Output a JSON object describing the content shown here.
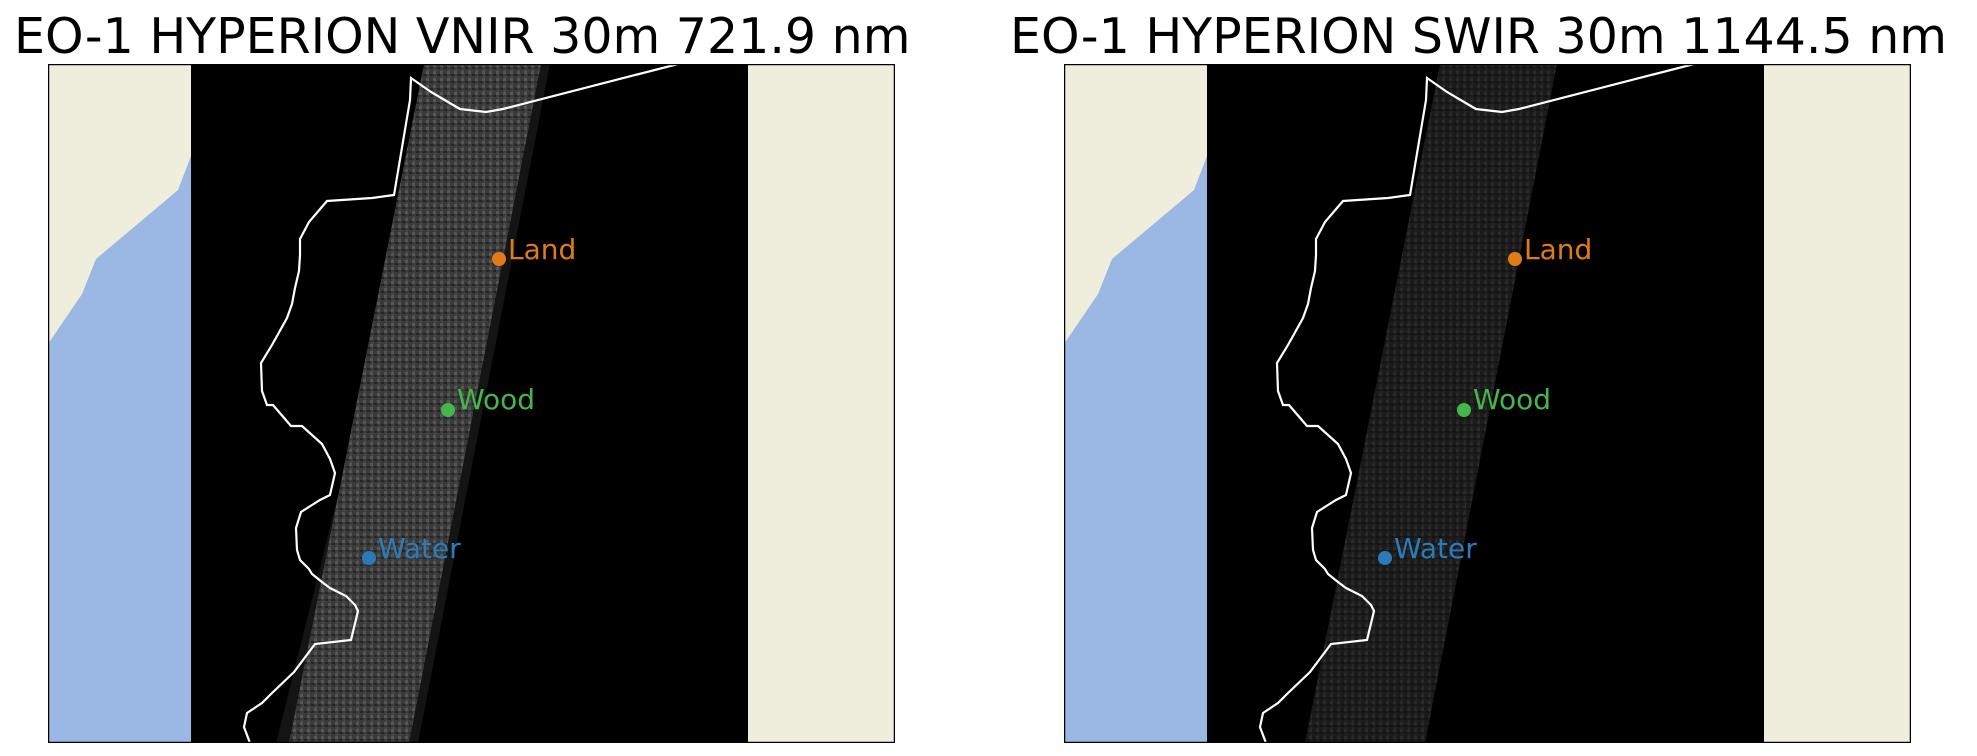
{
  "colors": {
    "land": "#efeddc",
    "ocean": "#9ab8e3",
    "nodata": "#000000",
    "coastline": "#ffffff",
    "land_point": "#e07b17",
    "wood_point": "#45b649",
    "water_point": "#2b7bb9"
  },
  "panels": [
    {
      "title": "EO-1 HYPERION VNIR 30m 721.9 nm",
      "sensor": "VNIR",
      "wavelength_nm": 721.9,
      "points": [
        {
          "label": "Land",
          "color": "#e07b17"
        },
        {
          "label": "Wood",
          "color": "#45b649"
        },
        {
          "label": "Water",
          "color": "#2b7bb9"
        }
      ]
    },
    {
      "title": "EO-1 HYPERION SWIR 30m 1144.5 nm",
      "sensor": "SWIR",
      "wavelength_nm": 1144.5,
      "points": [
        {
          "label": "Land",
          "color": "#e07b17"
        },
        {
          "label": "Wood",
          "color": "#45b649"
        },
        {
          "label": "Water",
          "color": "#2b7bb9"
        }
      ]
    }
  ]
}
